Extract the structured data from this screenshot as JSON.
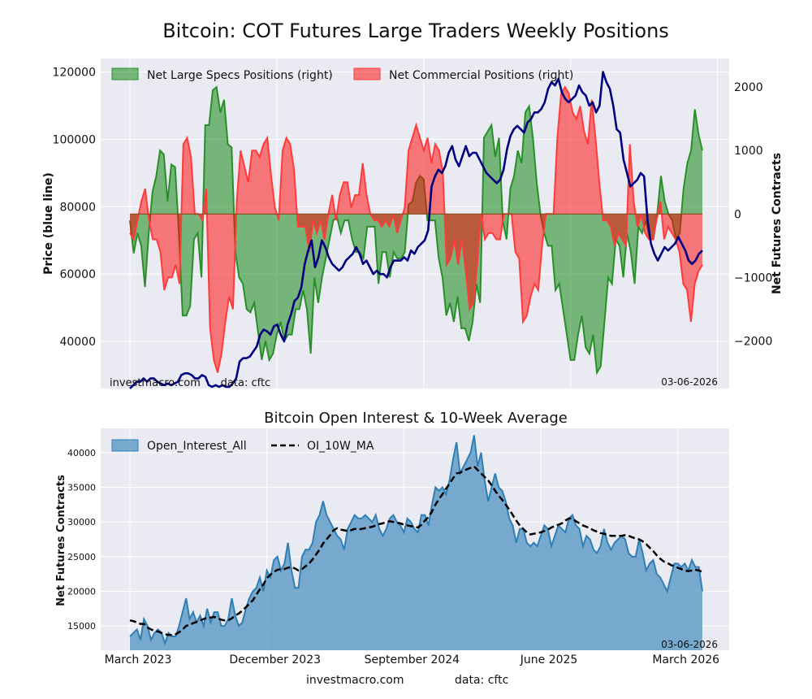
{
  "main_title": "Bitcoin: COT Futures Large Traders Weekly Positions",
  "footer": {
    "site": "investmacro.com",
    "source": "data: cftc"
  },
  "chart_data": [
    {
      "type": "line",
      "title": "Bitcoin: COT Futures Large Traders Weekly Positions",
      "ylabel_left": "Price (blue line)",
      "ylabel_right": "Net Futures Contracts",
      "ylim_left": [
        26000,
        124000
      ],
      "ylim_right": [
        -2750,
        2450
      ],
      "yticks_left": [
        40000,
        60000,
        80000,
        100000,
        120000
      ],
      "yticks_left_labels": [
        "40000",
        "60000",
        "80000",
        "100000",
        "120000"
      ],
      "yticks_right": [
        -2000,
        -1000,
        0,
        1000,
        2000
      ],
      "yticks_right_labels": [
        "−2000",
        "−1000",
        "0",
        "1000",
        "2000"
      ],
      "legend": [
        "Net Large Specs Positions (right)",
        "Net Commercial Positions (right)"
      ],
      "legend_position": "top-left",
      "grid": true,
      "watermark_left": "investmacro.com      data: cftc",
      "date_stamp": "03-06-2026",
      "x_start": "2023-03-07",
      "x_step_weeks": 1,
      "colors": {
        "specs": "#2a8f2a",
        "commercial": "#ff3b3b",
        "price": "#000080"
      },
      "series": [
        {
          "name": "Net Large Specs Positions (right)",
          "values": [
            -100,
            -620,
            -300,
            -500,
            -1150,
            -300,
            350,
            600,
            1000,
            940,
            200,
            780,
            740,
            -300,
            -1600,
            -1600,
            -1450,
            -400,
            -300,
            -1000,
            1400,
            1400,
            1950,
            2000,
            1600,
            1800,
            1100,
            1050,
            -600,
            -1000,
            -1100,
            -1500,
            -1550,
            -1400,
            -1850,
            -2300,
            -2000,
            -2300,
            -2200,
            -1900,
            -1700,
            -2000,
            -1900,
            -1900,
            -1500,
            -1500,
            -1200,
            -1500,
            -2200,
            -1000,
            -1400,
            -1000,
            -700,
            -400,
            -100,
            -50,
            -300,
            -100,
            -100,
            -400,
            -600,
            -600,
            -700,
            -200,
            -200,
            -200,
            -1100,
            -600,
            -600,
            -1000,
            -600,
            -700,
            -700,
            -600,
            150,
            200,
            500,
            600,
            550,
            -100,
            -100,
            -100,
            -700,
            -1000,
            -1600,
            -1400,
            -1700,
            -1300,
            -1800,
            -1800,
            -2000,
            -1700,
            -1100,
            -1400,
            1200,
            1300,
            1400,
            900,
            1200,
            -100,
            -400,
            400,
            600,
            1000,
            800,
            1600,
            1700,
            1200,
            500,
            0,
            -300,
            -500,
            -500,
            -1200,
            -1100,
            -1500,
            -1900,
            -2300,
            -2300,
            -1900,
            -1600,
            -2100,
            -2200,
            -1900,
            -2500,
            -2400,
            -1700,
            -1000,
            -1100,
            -400,
            -500,
            -1000,
            -300,
            -600,
            -1100,
            -200,
            -300,
            -100,
            -400,
            -400,
            0,
            600,
            200,
            0,
            -100,
            -400,
            -300,
            400,
            800,
            1000,
            1650,
            1250,
            1000
          ],
          "fill": "rgba(0,128,0,0.5)"
        },
        {
          "name": "Net Commercial Positions (right)",
          "values": [
            -300,
            -400,
            -100,
            200,
            400,
            -100,
            -400,
            -400,
            -600,
            -1200,
            -1000,
            -1000,
            -800,
            -1100,
            1100,
            1200,
            900,
            0,
            0,
            -100,
            400,
            -1800,
            -2300,
            -2500,
            -2200,
            -1700,
            -1300,
            -1500,
            200,
            1000,
            750,
            500,
            1000,
            1000,
            900,
            1100,
            1200,
            600,
            100,
            -100,
            1000,
            1200,
            1100,
            700,
            -200,
            -200,
            -200,
            -600,
            -100,
            -300,
            -100,
            -400,
            0,
            300,
            -100,
            300,
            500,
            500,
            100,
            300,
            300,
            800,
            300,
            0,
            -100,
            -100,
            -200,
            -100,
            -200,
            0,
            -300,
            -100,
            100,
            1000,
            1200,
            1400,
            1200,
            1000,
            1200,
            800,
            1100,
            1000,
            650,
            -800,
            -700,
            -400,
            -800,
            -400,
            -900,
            -1500,
            -1400,
            -800,
            0,
            -400,
            -300,
            -300,
            -400,
            -400,
            0,
            0,
            0,
            -600,
            -700,
            -1700,
            -1600,
            -1300,
            -1100,
            -1200,
            -500,
            0,
            0,
            0,
            1200,
            1900,
            2000,
            1900,
            1600,
            1500,
            1700,
            1300,
            1100,
            1800,
            1200,
            500,
            -100,
            -100,
            -200,
            -500,
            -300,
            -400,
            -500,
            1100,
            200,
            -200,
            0,
            -300,
            -400,
            -400,
            -100,
            200,
            -400,
            -200,
            -300,
            -400,
            -600,
            -1100,
            -1200,
            -1700,
            -1100,
            -900,
            -800
          ],
          "fill": "rgba(255,0,0,0.5)"
        },
        {
          "name": "",
          "values": [
            26000,
            27000,
            28000,
            28000,
            29000,
            28000,
            29000,
            29000,
            28000,
            27500,
            27000,
            27500,
            27000,
            27500,
            28000,
            30000,
            30500,
            30500,
            30000,
            29000,
            29000,
            30000,
            29500,
            27000,
            26500,
            27000,
            26500,
            27000,
            26500,
            26500,
            27500,
            29000,
            34000,
            35000,
            35000,
            35500,
            37000,
            38500,
            42000,
            43500,
            43000,
            42000,
            44500,
            45000,
            42000,
            40000,
            45000,
            48000,
            52000,
            53000,
            56000,
            63000,
            67000,
            70000,
            62000,
            65000,
            70000,
            68000,
            65000,
            63000,
            62000,
            61000,
            62000,
            64000,
            65000,
            66000,
            68000,
            66000,
            63000,
            64000,
            62000,
            60000,
            61000,
            60000,
            60000,
            59000,
            62000,
            64000,
            64000,
            64000,
            65000,
            64000,
            67000,
            66000,
            68000,
            69000,
            70000,
            73000,
            86000,
            89000,
            91000,
            90000,
            92000,
            96000,
            98000,
            94000,
            92000,
            95000,
            98000,
            95000,
            96000,
            96000,
            94000,
            92000,
            90000,
            89000,
            88000,
            87000,
            88000,
            91000,
            97000,
            101000,
            103000,
            104000,
            103000,
            102000,
            105000,
            106000,
            108000,
            108000,
            109000,
            111000,
            115000,
            117000,
            116000,
            118000,
            114000,
            112000,
            111000,
            112000,
            113000,
            116000,
            114000,
            113000,
            110000,
            111000,
            108000,
            110000,
            120000,
            117000,
            115000,
            110000,
            103000,
            102000,
            94000,
            90000,
            86000,
            87000,
            88000,
            90000,
            89000,
            76000,
            69000,
            66000,
            64000,
            66000,
            68000,
            67000,
            68000,
            69000,
            71000,
            69000,
            67000,
            64000,
            63000,
            64000,
            66000,
            67000
          ],
          "color": "#000080"
        }
      ]
    },
    {
      "type": "area",
      "title": "Bitcoin Open Interest & 10-Week Average",
      "ylabel": "Net Futures Contracts",
      "ylim": [
        11500,
        43500
      ],
      "yticks": [
        15000,
        20000,
        25000,
        30000,
        35000,
        40000
      ],
      "yticks_labels": [
        "15000",
        "20000",
        "25000",
        "30000",
        "35000",
        "40000"
      ],
      "x_tick_labels": [
        "March 2023",
        "December 2023",
        "September 2024",
        "June 2025",
        "March 2026"
      ],
      "x_ticks": [
        "2023-03-07",
        "2023-12-05",
        "2024-09-03",
        "2025-06-03",
        "2026-03-03"
      ],
      "legend": [
        "Open_Interest_All",
        "OI_10W_MA"
      ],
      "legend_position": "top-left",
      "grid": true,
      "date_stamp": "03-06-2026",
      "x_start": "2023-03-07",
      "x_step_weeks": 1,
      "colors": {
        "oi_fill": "#5b9bc8",
        "oi_line": "#2f7fb5",
        "ma": "#000000"
      },
      "series": [
        {
          "name": "Open_Interest_All",
          "values": [
            13500,
            14000,
            14500,
            13000,
            16000,
            15000,
            13000,
            14000,
            14500,
            14000,
            12500,
            14000,
            13500,
            13500,
            15000,
            17000,
            19000,
            16000,
            17000,
            15500,
            16500,
            15000,
            17500,
            15500,
            17000,
            17000,
            15000,
            15000,
            16000,
            19000,
            16500,
            15000,
            15500,
            17500,
            19000,
            20000,
            20500,
            22000,
            20000,
            23000,
            22000,
            24500,
            25000,
            23000,
            24000,
            27000,
            23000,
            20500,
            20500,
            25000,
            26000,
            26000,
            27000,
            30000,
            31000,
            33000,
            31000,
            30000,
            29000,
            28000,
            27500,
            26000,
            29000,
            30000,
            31000,
            30500,
            30500,
            31000,
            30500,
            30000,
            31000,
            29000,
            28000,
            29000,
            30500,
            31000,
            30000,
            29500,
            28500,
            30500,
            30000,
            29000,
            28500,
            31000,
            31000,
            29500,
            32500,
            35000,
            34500,
            35000,
            34000,
            36000,
            39000,
            41500,
            37000,
            38000,
            39000,
            40000,
            42500,
            38000,
            40000,
            36000,
            33000,
            35000,
            37000,
            35000,
            34500,
            33000,
            30500,
            29500,
            27000,
            29000,
            29000,
            27000,
            26500,
            27000,
            26500,
            28000,
            29500,
            29000,
            26500,
            28000,
            29500,
            29000,
            28500,
            30500,
            31000,
            29500,
            29000,
            26500,
            28000,
            27500,
            26000,
            25500,
            26500,
            29000,
            27000,
            26000,
            27000,
            27500,
            28000,
            27500,
            25500,
            25000,
            25000,
            27500,
            25500,
            23000,
            24000,
            24500,
            22500,
            22000,
            21000,
            20000,
            22000,
            24000,
            24000,
            23500,
            24000,
            23000,
            24500,
            23500,
            23500,
            20000
          ],
          "fill": "rgba(70,140,190,0.7)"
        },
        {
          "name": "OI_10W_MA",
          "values": [
            15800,
            15700,
            15500,
            15300,
            15300,
            14800,
            14500,
            14300,
            14200,
            14000,
            13800,
            13700,
            13700,
            13800,
            14100,
            14500,
            15000,
            15200,
            15400,
            15600,
            15800,
            16000,
            16200,
            16200,
            16300,
            16100,
            15900,
            15800,
            15800,
            16100,
            16500,
            16800,
            17200,
            17700,
            18200,
            18700,
            19500,
            20300,
            21000,
            21900,
            22400,
            22800,
            23100,
            23200,
            23200,
            23400,
            23500,
            23300,
            23000,
            23200,
            23600,
            24000,
            24600,
            25300,
            26000,
            26900,
            27500,
            28100,
            28800,
            29100,
            28900,
            28800,
            28700,
            28800,
            29000,
            28900,
            29000,
            29100,
            29200,
            29300,
            29500,
            29700,
            29800,
            30000,
            30100,
            30000,
            29900,
            29800,
            29600,
            29500,
            29400,
            29300,
            29200,
            29600,
            30200,
            30700,
            31500,
            32500,
            33300,
            34000,
            34800,
            35500,
            36300,
            37000,
            37100,
            37400,
            37600,
            37800,
            38000,
            37500,
            37000,
            36500,
            36000,
            35300,
            34500,
            33800,
            33200,
            32500,
            31800,
            31000,
            30200,
            29500,
            29000,
            28500,
            28200,
            28300,
            28400,
            28500,
            28700,
            28900,
            29200,
            29400,
            29600,
            29800,
            30200,
            30500,
            30500,
            30100,
            29800,
            29500,
            29300,
            29100,
            28800,
            28600,
            28400,
            28300,
            28100,
            28000,
            28000,
            28000,
            28000,
            28100,
            28000,
            27800,
            27600,
            27500,
            27200,
            26800,
            26300,
            25800,
            25200,
            24700,
            24300,
            24100,
            23800,
            23600,
            23400,
            23200,
            23000,
            22900,
            23000,
            23100,
            23000,
            22800
          ]
        }
      ]
    }
  ]
}
